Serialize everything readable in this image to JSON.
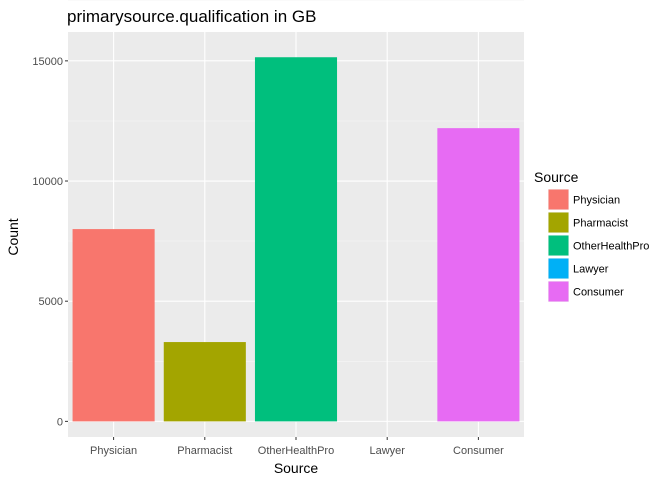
{
  "chart_data": {
    "type": "bar",
    "title": "primarysource.qualification in GB",
    "xlabel": "Source",
    "ylabel": "Count",
    "categories": [
      "Physician",
      "Pharmacist",
      "OtherHealthPro",
      "Lawyer",
      "Consumer"
    ],
    "values": [
      8000,
      3300,
      15150,
      0,
      12200
    ],
    "colors": [
      "#F8766D",
      "#A3A500",
      "#00BF7D",
      "#00B0F6",
      "#E76BF3"
    ],
    "ylim": [
      -650,
      16200
    ],
    "yticks": [
      0,
      5000,
      10000,
      15000
    ],
    "ytick_labels": [
      "0",
      "5000",
      "10000",
      "15000"
    ],
    "grid": true,
    "legend": {
      "title": "Source",
      "position": "right",
      "entries": [
        "Physician",
        "Pharmacist",
        "OtherHealthPro",
        "Lawyer",
        "Consumer"
      ]
    }
  },
  "theme": {
    "panel_background": "#EBEBEB",
    "grid_major": "#FFFFFF",
    "grid_minor": "#F5F5F5",
    "tick_color": "#333333"
  }
}
